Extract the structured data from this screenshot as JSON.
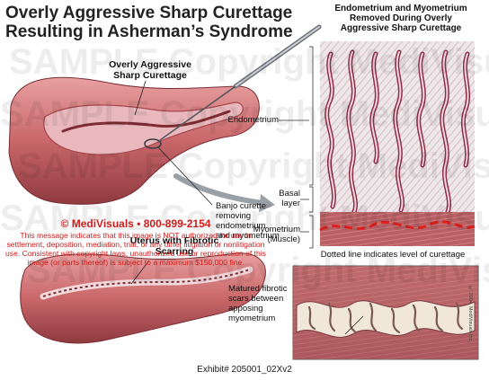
{
  "title_line1": "Overly Aggressive Sharp Curettage",
  "title_line2": "Resulting in Asherman’s Syndrome",
  "labels": {
    "curettage": "Overly Aggressive\nSharp Curettage",
    "curette": "Banjo curette\nremoving\nendometrium\nand myometrium",
    "uterus_fibrotic": "Uterus with Fibrotic\nScarring",
    "right_title": "Endometrium and Myometrium\nRemoved During Overly\nAggressive Sharp Curettage",
    "endometrium": "Endometrium",
    "basal": "Basal\nlayer",
    "myometrium": "Myometrium\n(Muscle)",
    "dotted_line": "Dotted line indicates level of curettage",
    "fibrotic_scars": "Matured fibrotic\nscars between\napposing\nmyometrium",
    "copyright_small": "© 2004, MediVisuals Inc."
  },
  "notice": {
    "head": "© MediVisuals • 800-899-2154",
    "body": "This message indicates that this image is NOT authorized for use in settlement, deposition, mediation, trial, or any other litigation or nonlitigation use. Consistent with copyright laws, unauthorized use or reproduction of this image (or parts thereof) is subject to a maximum $150,000 fine."
  },
  "watermark": "SAMPLE Copyright MediVisuals Copyright SAMPLE Copyright MediVisuals",
  "exhibit": "Exhibit# 205001_02Xv2",
  "colors": {
    "tissue": "#c96a6a",
    "tissue_dark": "#8f3a3f",
    "endometrium": "#e7c6cf",
    "curettage_line": "#e0201f",
    "notice": "#d21a1a"
  }
}
